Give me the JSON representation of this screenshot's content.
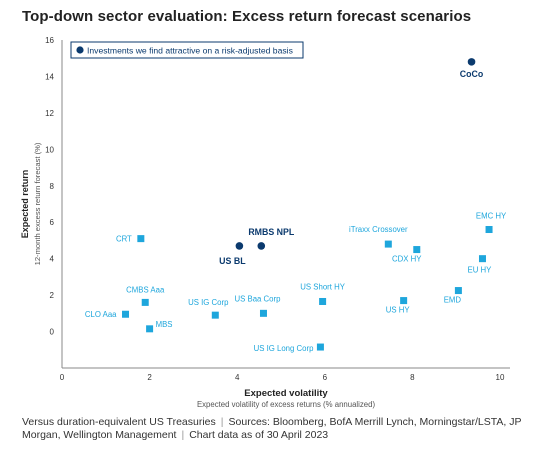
{
  "title": "Top-down sector evaluation: Excess return forecast scenarios",
  "legend": {
    "label": "Investments we find attractive on a risk-adjusted basis"
  },
  "footnote": {
    "basis": "Versus duration-equivalent US Treasuries",
    "sources": "Sources: Bloomberg, BofA Merrill Lynch, Morningstar/LSTA, JP Morgan, Wellington Management",
    "date": "Chart data as of 30 April 2023"
  },
  "colors": {
    "attractive": "#0b3a6e",
    "other": "#1ea6dc",
    "axis": "#888888",
    "text": "#333333"
  },
  "chart_data": {
    "type": "scatter",
    "title": "Top-down sector evaluation: Excess return forecast scenarios",
    "xlabel": "Expected volatility",
    "xsublabel": "Expected volatility of excess returns (% annualized)",
    "ylabel": "Expected return",
    "ysublabel": "12-month excess return forecast (%)",
    "xlim": [
      0,
      10
    ],
    "ylim": [
      -2,
      16
    ],
    "xticks": [
      "0",
      "2",
      "4",
      "6",
      "8",
      "10"
    ],
    "yticks": [
      "0",
      "2",
      "4",
      "6",
      "8",
      "10",
      "12",
      "14",
      "16"
    ],
    "grid": false,
    "legend_position": "top-left",
    "series": [
      {
        "name": "Investments we find attractive on a risk-adjusted basis",
        "marker": "circle",
        "points": [
          {
            "label": "CoCo",
            "x": 9.35,
            "y": 14.8
          },
          {
            "label": "RMBS NPL",
            "x": 4.55,
            "y": 4.7
          },
          {
            "label": "US BL",
            "x": 4.05,
            "y": 4.7
          }
        ]
      },
      {
        "marker": "square",
        "points": [
          {
            "label": "CRT",
            "x": 1.8,
            "y": 5.1
          },
          {
            "label": "CMBS Aaa",
            "x": 1.9,
            "y": 1.6
          },
          {
            "label": "CLO Aaa",
            "x": 1.45,
            "y": 0.95
          },
          {
            "label": "MBS",
            "x": 2.0,
            "y": 0.15
          },
          {
            "label": "US IG Corp",
            "x": 3.5,
            "y": 0.9
          },
          {
            "label": "US Baa Corp",
            "x": 4.6,
            "y": 1.0
          },
          {
            "label": "US Short HY",
            "x": 5.95,
            "y": 1.65
          },
          {
            "label": "US IG Long Corp",
            "x": 5.9,
            "y": -0.85
          },
          {
            "label": "iTraxx Crossover",
            "x": 7.45,
            "y": 4.8
          },
          {
            "label": "CDX HY",
            "x": 8.1,
            "y": 4.5
          },
          {
            "label": "US HY",
            "x": 7.8,
            "y": 1.7
          },
          {
            "label": "EMC HY",
            "x": 9.75,
            "y": 5.6
          },
          {
            "label": "EU HY",
            "x": 9.6,
            "y": 4.0
          },
          {
            "label": "EMD",
            "x": 9.05,
            "y": 2.25
          }
        ]
      }
    ]
  }
}
